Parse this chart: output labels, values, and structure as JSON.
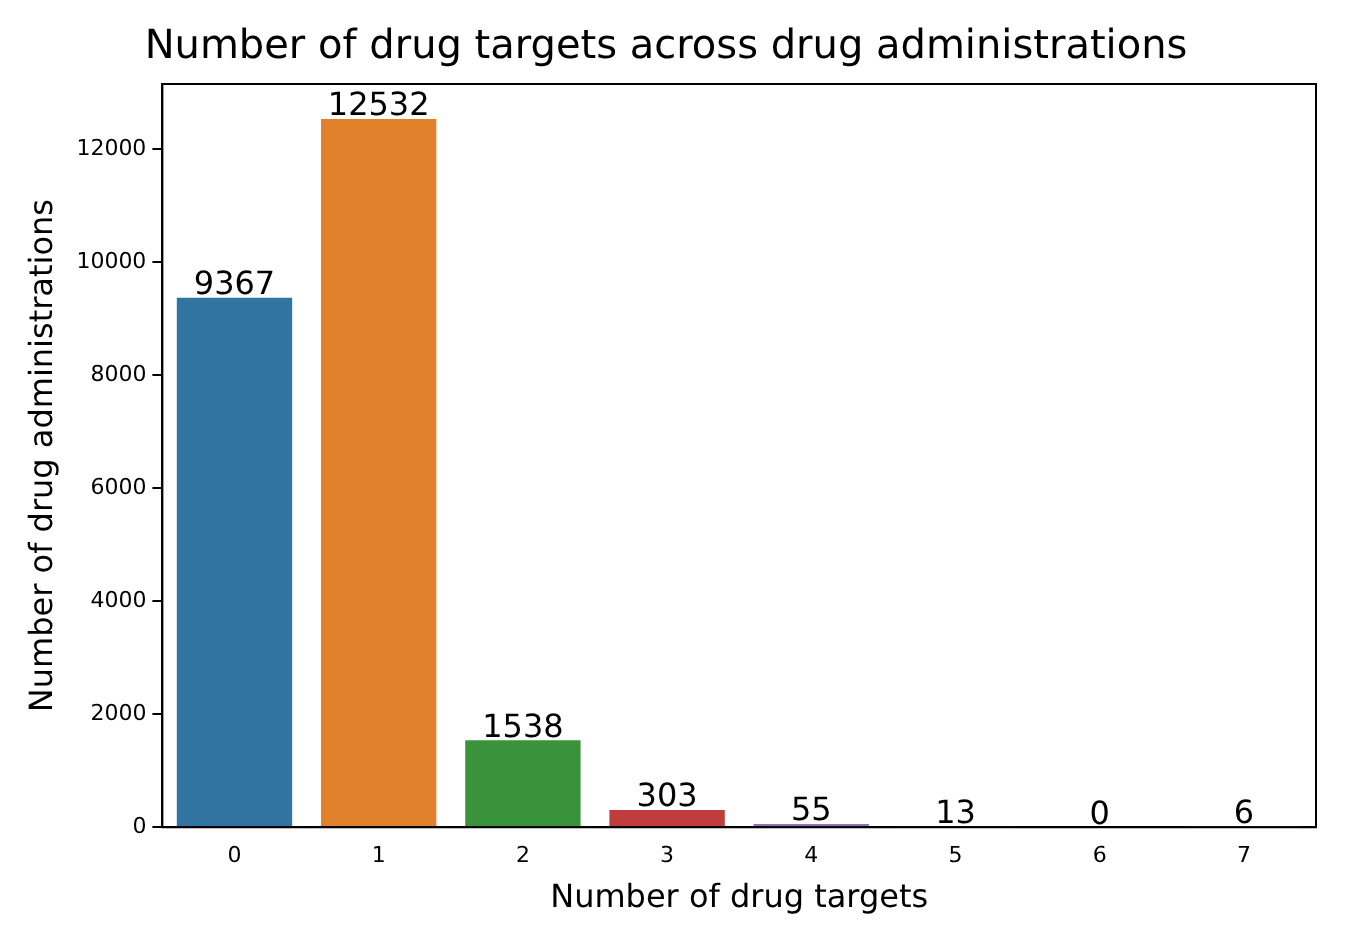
{
  "chart_data": {
    "type": "bar",
    "title": "Number of drug targets across drug administrations",
    "xlabel": "Number of drug targets",
    "ylabel": "Number of drug administrations",
    "categories": [
      "0",
      "1",
      "2",
      "3",
      "4",
      "5",
      "6",
      "7"
    ],
    "values": [
      9367,
      12532,
      1538,
      303,
      55,
      13,
      0,
      6
    ],
    "colors": [
      "#3274a1",
      "#e1812c",
      "#3a923a",
      "#c03d3e",
      "#9372b2",
      "#845b53",
      "#d684bd",
      "#7f7f7f"
    ],
    "ylim": [
      0,
      13150
    ],
    "yticks": [
      0,
      2000,
      4000,
      6000,
      8000,
      10000,
      12000
    ],
    "grid": false,
    "legend": false,
    "data_labels": true
  }
}
